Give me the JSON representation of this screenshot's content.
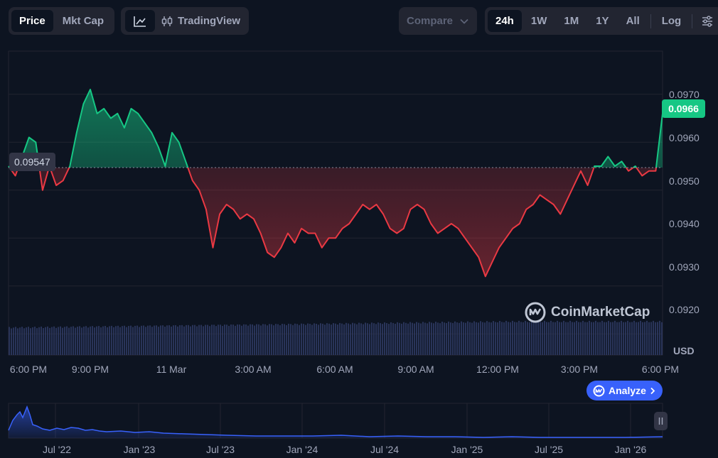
{
  "toolbar": {
    "view_tabs": [
      "Price",
      "Mkt Cap"
    ],
    "active_view": "Price",
    "tradingview_label": "TradingView",
    "compare_label": "Compare",
    "range_tabs": [
      "24h",
      "1W",
      "1M",
      "1Y",
      "All"
    ],
    "active_range": "24h",
    "log_label": "Log"
  },
  "price": {
    "current": "0.0966",
    "open": "0.09547",
    "currency": "USD"
  },
  "watermark": "CoinMarketCap",
  "analyze_label": "Analyze",
  "colors": {
    "up": "#16c784",
    "down": "#ea3943",
    "accent": "#3861fb",
    "background": "#0d1421"
  },
  "icons": [
    "line-chart-icon",
    "candlestick-icon",
    "chevron-down-icon",
    "settings-sliders-icon",
    "coinmarketcap-logo-icon",
    "chevron-right-icon",
    "pause-handle-icon"
  ],
  "chart_data": {
    "type": "line",
    "ylim": [
      0.09156,
      0.0979
    ],
    "y_ticks": [
      "0.0970",
      "0.0960",
      "0.0950",
      "0.0940",
      "0.0930",
      "0.0920"
    ],
    "x_ticks": [
      "6:00 PM",
      "9:00 PM",
      "11 Mar",
      "3:00 AM",
      "6:00 AM",
      "9:00 AM",
      "12:00 PM",
      "3:00 PM",
      "6:00 PM"
    ],
    "baseline": 0.09547,
    "grid": true,
    "series": [
      {
        "x": [
          0,
          1,
          2,
          3,
          4,
          5,
          6,
          7,
          8,
          9,
          10,
          11,
          12,
          13,
          14,
          15,
          16,
          17,
          18,
          19,
          20,
          21,
          22,
          23,
          24,
          25,
          26,
          27,
          28,
          29,
          30,
          31,
          32,
          33,
          34,
          35,
          36,
          37,
          38,
          39,
          40,
          41,
          42,
          43,
          44,
          45,
          46,
          47,
          48,
          49,
          50,
          51,
          52,
          53,
          54,
          55,
          56,
          57,
          58,
          59,
          60,
          61,
          62,
          63,
          64,
          65,
          66,
          67,
          68,
          69,
          70,
          71,
          72,
          73,
          74,
          75,
          76,
          77,
          78,
          79,
          80,
          81,
          82,
          83,
          84,
          85,
          86,
          87,
          88,
          89,
          90,
          91,
          92,
          93,
          94,
          95,
          96
        ],
        "values": [
          0.0955,
          0.0953,
          0.0957,
          0.0961,
          0.096,
          0.095,
          0.0955,
          0.0951,
          0.0952,
          0.0955,
          0.0962,
          0.0968,
          0.0971,
          0.0966,
          0.0967,
          0.0965,
          0.0966,
          0.0963,
          0.0967,
          0.0966,
          0.0964,
          0.0962,
          0.0959,
          0.0955,
          0.0962,
          0.096,
          0.0956,
          0.0952,
          0.095,
          0.0946,
          0.0938,
          0.0945,
          0.0947,
          0.0946,
          0.0944,
          0.0945,
          0.0944,
          0.0941,
          0.0937,
          0.0936,
          0.0938,
          0.0941,
          0.0939,
          0.0942,
          0.0941,
          0.0941,
          0.0938,
          0.094,
          0.094,
          0.0942,
          0.0943,
          0.0945,
          0.0947,
          0.0946,
          0.0947,
          0.0945,
          0.0942,
          0.0941,
          0.0942,
          0.0946,
          0.0947,
          0.0946,
          0.0943,
          0.0941,
          0.0942,
          0.0943,
          0.0942,
          0.094,
          0.0938,
          0.0936,
          0.0932,
          0.0935,
          0.0938,
          0.094,
          0.0942,
          0.0943,
          0.0946,
          0.0947,
          0.0949,
          0.0948,
          0.0947,
          0.0945,
          0.0948,
          0.0951,
          0.0954,
          0.0951,
          0.0955,
          0.0955,
          0.0957,
          0.0955,
          0.0956,
          0.0954,
          0.0955,
          0.0953,
          0.0954,
          0.0954,
          0.0966
        ]
      }
    ]
  },
  "navigator": {
    "labels": [
      "Jul '22",
      "Jan '23",
      "Jul '23",
      "Jan '24",
      "Jul '24",
      "Jan '25",
      "Jul '25",
      "Jan '26"
    ]
  }
}
